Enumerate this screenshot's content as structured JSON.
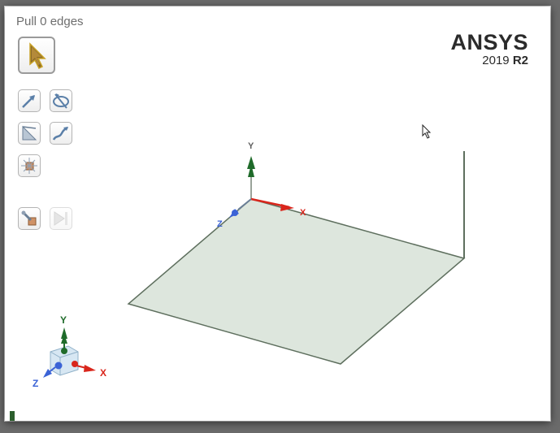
{
  "status": {
    "title": "Pull 0 edges"
  },
  "brand": {
    "name": "ANSYS",
    "year": "2019",
    "release": "R2"
  },
  "toolbar": {
    "items": [
      {
        "icon": "select-arrow-icon",
        "state": "active"
      },
      {
        "icon": "pull-arrow-icon"
      },
      {
        "icon": "revolve-icon"
      },
      {
        "icon": "sweep-icon"
      },
      {
        "icon": "draft-icon"
      },
      {
        "icon": "blend-icon"
      },
      {
        "icon": "tool-guide-icon"
      },
      {
        "icon": "complete-icon",
        "state": "disabled"
      }
    ]
  },
  "scene_axes": {
    "x": "X",
    "y": "Y",
    "z": "Z"
  },
  "triad": {
    "x": "X",
    "y": "Y",
    "z": "Z"
  },
  "colors": {
    "plane_fill": "#dde6dd",
    "plane_edge": "#5e6f5e",
    "x_axis": "#d9261c",
    "y_axis": "#1f6b2a",
    "z_axis": "#3b63d6"
  }
}
